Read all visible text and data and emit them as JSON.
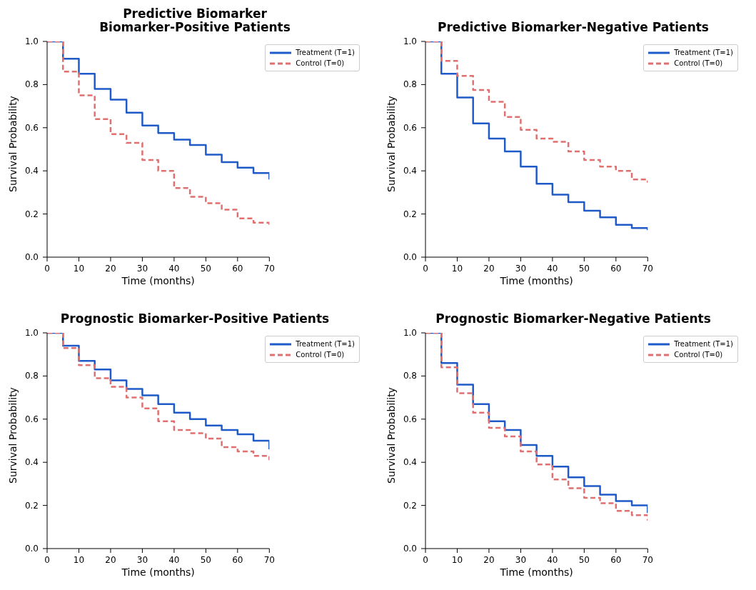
{
  "chart_data": [
    {
      "type": "step",
      "title": "Predictive Biomarker\nBiomarker-Positive Patients",
      "xlabel": "Time (months)",
      "ylabel": "Survival Probability",
      "x": [
        0,
        5,
        10,
        15,
        20,
        25,
        30,
        35,
        40,
        45,
        50,
        55,
        60,
        65,
        70
      ],
      "xlim": [
        0,
        70
      ],
      "xticks": [
        0,
        10,
        20,
        30,
        40,
        50,
        60,
        70
      ],
      "ylim": [
        0,
        1
      ],
      "yticks": [
        {
          "value": 0,
          "label": "0.0"
        },
        {
          "value": 0.2,
          "label": "0.2"
        },
        {
          "value": 0.4,
          "label": "0.4"
        },
        {
          "value": 0.6,
          "label": "0.6"
        },
        {
          "value": 0.8,
          "label": "0.8"
        },
        {
          "value": 1,
          "label": "1.0"
        }
      ],
      "grid": false,
      "legend": "top right",
      "marker": "none",
      "series": [
        {
          "name": "Treatment (T=1)",
          "color": "#1f5bc8",
          "line_style": "solid",
          "values": [
            1.0,
            0.92,
            0.85,
            0.78,
            0.73,
            0.67,
            0.61,
            0.575,
            0.545,
            0.52,
            0.475,
            0.44,
            0.415,
            0.39,
            0.36
          ]
        },
        {
          "name": "Control (T=0)",
          "color": "#e07070",
          "line_style": "dashed",
          "values": [
            1.0,
            0.86,
            0.75,
            0.64,
            0.57,
            0.53,
            0.45,
            0.4,
            0.32,
            0.28,
            0.25,
            0.22,
            0.18,
            0.16,
            0.14
          ]
        }
      ]
    },
    {
      "type": "step",
      "title": "Predictive Biomarker-Negative Patients",
      "xlabel": "Time (months)",
      "ylabel": "Survival Probability",
      "x": [
        0,
        5,
        10,
        15,
        20,
        25,
        30,
        35,
        40,
        45,
        50,
        55,
        60,
        65,
        70
      ],
      "xlim": [
        0,
        70
      ],
      "xticks": [
        0,
        10,
        20,
        30,
        40,
        50,
        60,
        70
      ],
      "ylim": [
        0,
        1
      ],
      "yticks": [
        {
          "value": 0,
          "label": "0.0"
        },
        {
          "value": 0.2,
          "label": "0.2"
        },
        {
          "value": 0.4,
          "label": "0.4"
        },
        {
          "value": 0.6,
          "label": "0.6"
        },
        {
          "value": 0.8,
          "label": "0.8"
        },
        {
          "value": 1,
          "label": "1.0"
        }
      ],
      "grid": false,
      "legend": "top right",
      "marker": "none",
      "series": [
        {
          "name": "Treatment (T=1)",
          "color": "#1f5bc8",
          "line_style": "solid",
          "values": [
            1.0,
            0.85,
            0.74,
            0.62,
            0.55,
            0.49,
            0.42,
            0.34,
            0.29,
            0.255,
            0.215,
            0.185,
            0.15,
            0.135,
            0.125
          ]
        },
        {
          "name": "Control (T=0)",
          "color": "#e07070",
          "line_style": "dashed",
          "values": [
            1.0,
            0.91,
            0.84,
            0.775,
            0.72,
            0.65,
            0.59,
            0.55,
            0.535,
            0.49,
            0.45,
            0.42,
            0.4,
            0.36,
            0.345
          ]
        }
      ]
    },
    {
      "type": "step",
      "title": "Prognostic Biomarker-Positive Patients",
      "xlabel": "Time (months)",
      "ylabel": "Survival Probability",
      "x": [
        0,
        5,
        10,
        15,
        20,
        25,
        30,
        35,
        40,
        45,
        50,
        55,
        60,
        65,
        70
      ],
      "xlim": [
        0,
        70
      ],
      "xticks": [
        0,
        10,
        20,
        30,
        40,
        50,
        60,
        70
      ],
      "ylim": [
        0,
        1
      ],
      "yticks": [
        {
          "value": 0,
          "label": "0.0"
        },
        {
          "value": 0.2,
          "label": "0.2"
        },
        {
          "value": 0.4,
          "label": "0.4"
        },
        {
          "value": 0.6,
          "label": "0.6"
        },
        {
          "value": 0.8,
          "label": "0.8"
        },
        {
          "value": 1,
          "label": "1.0"
        }
      ],
      "grid": false,
      "legend": "top right",
      "marker": "none",
      "series": [
        {
          "name": "Treatment (T=1)",
          "color": "#1f5bc8",
          "line_style": "solid",
          "values": [
            1.0,
            0.94,
            0.87,
            0.83,
            0.78,
            0.74,
            0.71,
            0.67,
            0.63,
            0.6,
            0.57,
            0.55,
            0.53,
            0.5,
            0.46
          ]
        },
        {
          "name": "Control (T=0)",
          "color": "#e07070",
          "line_style": "dashed",
          "values": [
            1.0,
            0.93,
            0.85,
            0.79,
            0.75,
            0.7,
            0.65,
            0.59,
            0.55,
            0.535,
            0.51,
            0.47,
            0.45,
            0.43,
            0.41
          ]
        }
      ]
    },
    {
      "type": "step",
      "title": "Prognostic Biomarker-Negative Patients",
      "xlabel": "Time (months)",
      "ylabel": "Survival Probability",
      "x": [
        0,
        5,
        10,
        15,
        20,
        25,
        30,
        35,
        40,
        45,
        50,
        55,
        60,
        65,
        70
      ],
      "xlim": [
        0,
        70
      ],
      "xticks": [
        0,
        10,
        20,
        30,
        40,
        50,
        60,
        70
      ],
      "ylim": [
        0,
        1
      ],
      "yticks": [
        {
          "value": 0,
          "label": "0.0"
        },
        {
          "value": 0.2,
          "label": "0.2"
        },
        {
          "value": 0.4,
          "label": "0.4"
        },
        {
          "value": 0.6,
          "label": "0.6"
        },
        {
          "value": 0.8,
          "label": "0.8"
        },
        {
          "value": 1,
          "label": "1.0"
        }
      ],
      "grid": false,
      "legend": "top right",
      "marker": "none",
      "series": [
        {
          "name": "Treatment (T=1)",
          "color": "#1f5bc8",
          "line_style": "solid",
          "values": [
            1.0,
            0.86,
            0.76,
            0.67,
            0.59,
            0.55,
            0.48,
            0.43,
            0.38,
            0.33,
            0.29,
            0.25,
            0.22,
            0.2,
            0.165
          ]
        },
        {
          "name": "Control (T=0)",
          "color": "#e07070",
          "line_style": "dashed",
          "values": [
            1.0,
            0.84,
            0.72,
            0.63,
            0.56,
            0.52,
            0.45,
            0.39,
            0.32,
            0.28,
            0.235,
            0.21,
            0.175,
            0.155,
            0.13
          ]
        }
      ]
    }
  ]
}
